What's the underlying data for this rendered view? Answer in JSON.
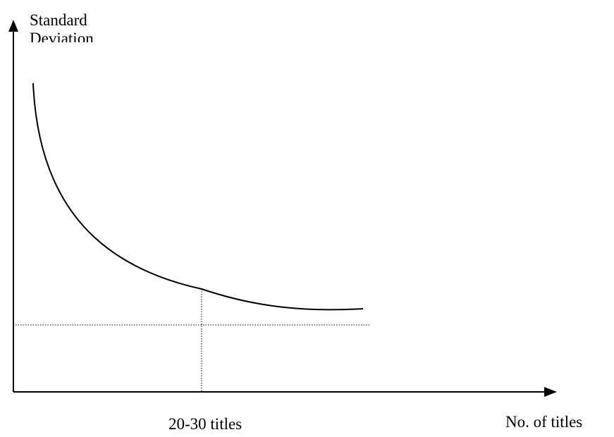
{
  "y_axis": {
    "label_line1": "Standard",
    "label_line2": "Deviation"
  },
  "x_axis": {
    "label": "No. of titles",
    "marker_label": "20-30 titles"
  }
}
